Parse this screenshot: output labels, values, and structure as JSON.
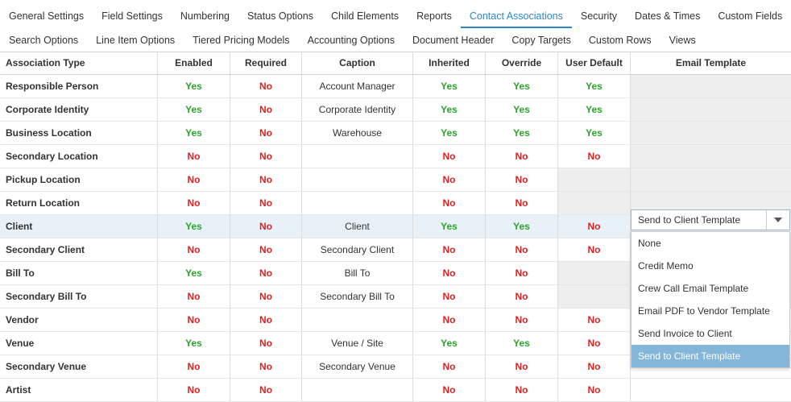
{
  "tabs": {
    "row1": [
      "General Settings",
      "Field Settings",
      "Numbering",
      "Status Options",
      "Child Elements",
      "Reports",
      "Contact Associations",
      "Security",
      "Dates & Times",
      "Custom Fields"
    ],
    "row2": [
      "Search Options",
      "Line Item Options",
      "Tiered Pricing Models",
      "Accounting Options",
      "Document Header",
      "Copy Targets",
      "Custom Rows",
      "Views"
    ],
    "active": "Contact Associations"
  },
  "columns": [
    "Association Type",
    "Enabled",
    "Required",
    "Caption",
    "Inherited",
    "Override",
    "User Default",
    "Email Template"
  ],
  "rows": [
    {
      "type": "Responsible Person",
      "enabled": "Yes",
      "required": "No",
      "caption": "Account Manager",
      "inherited": "Yes",
      "override": "Yes",
      "user_default": "Yes",
      "email_template": ""
    },
    {
      "type": "Corporate Identity",
      "enabled": "Yes",
      "required": "No",
      "caption": "Corporate Identity",
      "inherited": "Yes",
      "override": "Yes",
      "user_default": "Yes",
      "email_template": ""
    },
    {
      "type": "Business Location",
      "enabled": "Yes",
      "required": "No",
      "caption": "Warehouse",
      "inherited": "Yes",
      "override": "Yes",
      "user_default": "Yes",
      "email_template": ""
    },
    {
      "type": "Secondary Location",
      "enabled": "No",
      "required": "No",
      "caption": "",
      "inherited": "No",
      "override": "No",
      "user_default": "No",
      "email_template": ""
    },
    {
      "type": "Pickup Location",
      "enabled": "No",
      "required": "No",
      "caption": "",
      "inherited": "No",
      "override": "No",
      "user_default": "",
      "email_template": ""
    },
    {
      "type": "Return Location",
      "enabled": "No",
      "required": "No",
      "caption": "",
      "inherited": "No",
      "override": "No",
      "user_default": "",
      "email_template": ""
    },
    {
      "type": "Client",
      "enabled": "Yes",
      "required": "No",
      "caption": "Client",
      "inherited": "Yes",
      "override": "Yes",
      "user_default": "No",
      "email_template": "Send to Client Template"
    },
    {
      "type": "Secondary Client",
      "enabled": "No",
      "required": "No",
      "caption": "Secondary Client",
      "inherited": "No",
      "override": "No",
      "user_default": "No",
      "email_template": ""
    },
    {
      "type": "Bill To",
      "enabled": "Yes",
      "required": "No",
      "caption": "Bill To",
      "inherited": "No",
      "override": "No",
      "user_default": "",
      "email_template": ""
    },
    {
      "type": "Secondary Bill To",
      "enabled": "No",
      "required": "No",
      "caption": "Secondary Bill To",
      "inherited": "No",
      "override": "No",
      "user_default": "",
      "email_template": ""
    },
    {
      "type": "Vendor",
      "enabled": "No",
      "required": "No",
      "caption": "",
      "inherited": "No",
      "override": "No",
      "user_default": "No",
      "email_template": ""
    },
    {
      "type": "Venue",
      "enabled": "Yes",
      "required": "No",
      "caption": "Venue / Site",
      "inherited": "Yes",
      "override": "Yes",
      "user_default": "No",
      "email_template": ""
    },
    {
      "type": "Secondary Venue",
      "enabled": "No",
      "required": "No",
      "caption": "Secondary Venue",
      "inherited": "No",
      "override": "No",
      "user_default": "No",
      "email_template": ""
    },
    {
      "type": "Artist",
      "enabled": "No",
      "required": "No",
      "caption": "",
      "inherited": "No",
      "override": "No",
      "user_default": "No",
      "email_template": ""
    }
  ],
  "disabled_cells": {
    "user_default": [
      4,
      5,
      8,
      9
    ],
    "email_template": [
      0,
      1,
      2,
      3,
      4,
      5,
      7,
      8,
      9
    ]
  },
  "selected_row": 6,
  "email_select": {
    "value": "Send to Client Template",
    "options": [
      "None",
      "Credit Memo",
      "Crew Call Email Template",
      "Email PDF to Vendor Template",
      "Send Invoice to Client",
      "Send to Client Template"
    ],
    "highlighted": "Send to Client Template"
  },
  "colors": {
    "active_tab": "#2f86c9",
    "yes": "#2aa52a",
    "no": "#e0201f",
    "selected_row": "#e8f1f8",
    "option_highlight": "#83b6d8",
    "disabled_cell": "#eeeeee"
  },
  "icons": {
    "select_arrow": "chevron-down-icon"
  }
}
